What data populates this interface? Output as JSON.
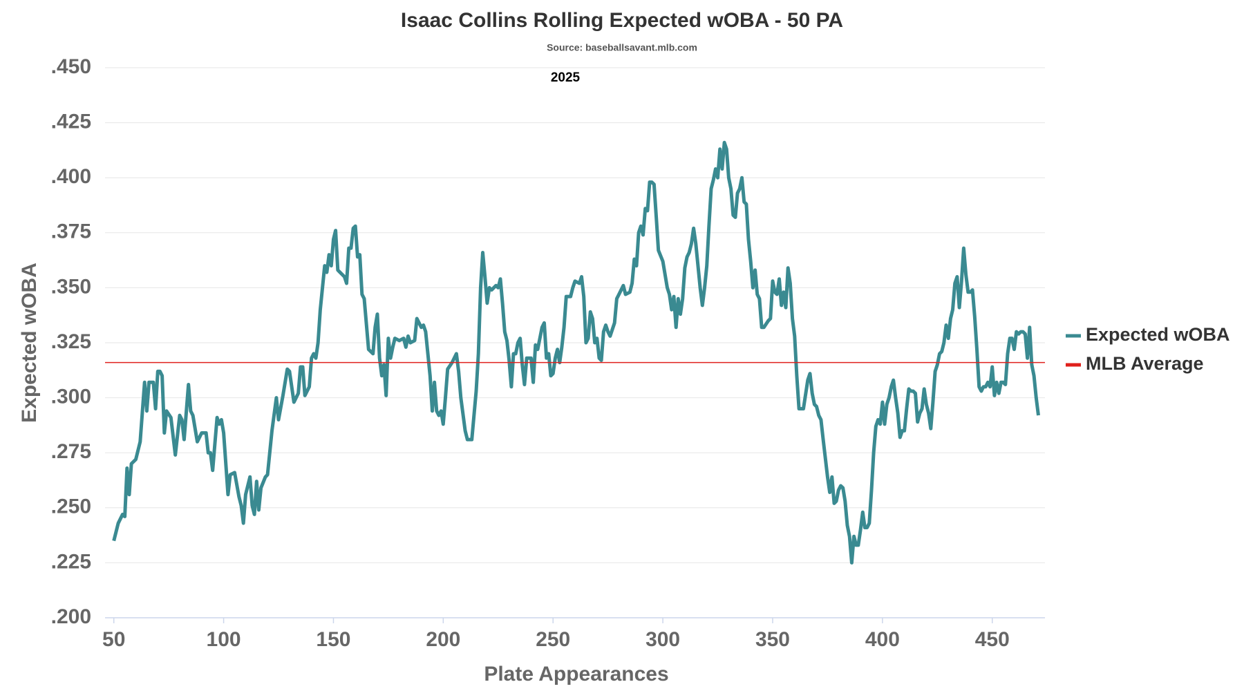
{
  "chart_data": {
    "type": "line",
    "title": "Isaac Collins Rolling Expected wOBA - 50 PA",
    "subtitle": "Source: baseballsavant.mlb.com",
    "annotation": "2025",
    "x_label": "Plate Appearances",
    "y_label": "Expected wOBA",
    "xlim": [
      46,
      474
    ],
    "xticks": [
      50,
      100,
      150,
      200,
      250,
      300,
      350,
      400,
      450
    ],
    "ylim": [
      0.2,
      0.45
    ],
    "yticks": [
      {
        "value": 0.2,
        "label": ".200"
      },
      {
        "value": 0.225,
        "label": ".225"
      },
      {
        "value": 0.25,
        "label": ".250"
      },
      {
        "value": 0.275,
        "label": ".275"
      },
      {
        "value": 0.3,
        "label": ".300"
      },
      {
        "value": 0.325,
        "label": ".325"
      },
      {
        "value": 0.35,
        "label": ".350"
      },
      {
        "value": 0.375,
        "label": ".375"
      },
      {
        "value": 0.4,
        "label": ".400"
      },
      {
        "value": 0.425,
        "label": ".425"
      },
      {
        "value": 0.45,
        "label": ".450"
      }
    ],
    "grid": true,
    "legend": "right",
    "x": [
      50,
      52,
      54,
      55,
      56,
      57,
      58,
      60,
      62,
      64,
      65,
      66,
      68,
      69,
      70,
      71,
      72,
      73,
      74,
      76,
      78,
      80,
      81,
      82,
      84,
      85,
      86,
      88,
      90,
      92,
      93,
      94,
      95,
      97,
      98,
      99,
      100,
      102,
      103,
      105,
      107,
      108,
      109,
      110,
      112,
      113,
      114,
      115,
      116,
      117,
      119,
      120,
      122,
      124,
      125,
      127,
      129,
      130,
      132,
      134,
      135,
      136,
      137,
      139,
      140,
      141,
      142,
      143,
      144,
      146,
      147,
      148,
      149,
      150,
      151,
      152,
      153,
      155,
      156,
      157,
      158,
      159,
      160,
      161,
      162,
      163,
      164,
      166,
      168,
      169,
      170,
      171,
      172,
      173,
      174,
      175,
      176,
      177,
      178,
      180,
      182,
      183,
      184,
      185,
      187,
      188,
      190,
      191,
      192,
      194,
      195,
      196,
      197,
      198,
      199,
      200,
      201,
      202,
      204,
      206,
      207,
      208,
      210,
      211,
      213,
      215,
      216,
      217,
      218,
      219,
      220,
      221,
      222,
      224,
      225,
      226,
      227,
      228,
      229,
      230,
      231,
      232,
      233,
      234,
      235,
      236,
      237,
      238,
      240,
      241,
      242,
      243,
      245,
      246,
      247,
      248,
      249,
      250,
      251,
      252,
      253,
      254,
      255,
      256,
      258,
      259,
      260,
      262,
      263,
      264,
      265,
      266,
      267,
      268,
      269,
      270,
      271,
      272,
      273,
      274,
      275,
      276,
      278,
      279,
      280,
      282,
      283,
      285,
      286,
      287,
      288,
      289,
      290,
      291,
      292,
      293,
      294,
      295,
      296,
      297,
      298,
      300,
      301,
      302,
      303,
      304,
      305,
      306,
      307,
      308,
      309,
      310,
      311,
      312,
      313,
      314,
      315,
      317,
      318,
      319,
      320,
      321,
      322,
      323,
      324,
      325,
      326,
      327,
      328,
      329,
      330,
      331,
      332,
      333,
      334,
      335,
      336,
      337,
      338,
      339,
      340,
      341,
      342,
      343,
      344,
      345,
      346,
      348,
      349,
      350,
      351,
      352,
      353,
      354,
      355,
      356,
      357,
      358,
      359,
      360,
      361,
      362,
      364,
      366,
      367,
      368,
      369,
      370,
      371,
      372,
      373,
      375,
      376,
      377,
      378,
      379,
      380,
      381,
      382,
      383,
      384,
      385,
      386,
      387,
      388,
      389,
      390,
      391,
      392,
      393,
      394,
      395,
      396,
      397,
      398,
      399,
      400,
      401,
      402,
      403,
      404,
      405,
      406,
      407,
      408,
      409,
      410,
      411,
      412,
      413,
      414,
      415,
      416,
      417,
      418,
      419,
      420,
      421,
      422,
      423,
      424,
      425,
      426,
      427,
      428,
      429,
      430,
      431,
      432,
      433,
      434,
      435,
      436,
      437,
      438,
      439,
      440,
      441,
      442,
      443,
      444,
      445,
      446,
      447,
      448,
      449,
      450,
      451,
      452,
      453,
      454,
      455,
      456,
      457,
      458,
      459,
      460,
      461,
      462,
      463,
      464,
      465,
      466,
      467,
      468,
      469,
      470,
      471
    ],
    "series": [
      {
        "name": "Expected wOBA",
        "color": "#3a8a91",
        "values": [
          0.235,
          0.243,
          0.247,
          0.246,
          0.268,
          0.256,
          0.27,
          0.272,
          0.28,
          0.307,
          0.294,
          0.307,
          0.307,
          0.295,
          0.312,
          0.312,
          0.31,
          0.284,
          0.294,
          0.291,
          0.274,
          0.292,
          0.29,
          0.281,
          0.306,
          0.294,
          0.292,
          0.28,
          0.284,
          0.284,
          0.275,
          0.275,
          0.267,
          0.291,
          0.288,
          0.29,
          0.284,
          0.256,
          0.265,
          0.266,
          0.255,
          0.251,
          0.243,
          0.256,
          0.264,
          0.251,
          0.247,
          0.262,
          0.249,
          0.259,
          0.264,
          0.265,
          0.285,
          0.3,
          0.29,
          0.301,
          0.313,
          0.312,
          0.298,
          0.302,
          0.314,
          0.314,
          0.301,
          0.305,
          0.318,
          0.32,
          0.318,
          0.325,
          0.34,
          0.36,
          0.357,
          0.365,
          0.36,
          0.372,
          0.376,
          0.358,
          0.357,
          0.355,
          0.352,
          0.368,
          0.368,
          0.377,
          0.378,
          0.364,
          0.365,
          0.347,
          0.345,
          0.322,
          0.32,
          0.332,
          0.338,
          0.318,
          0.31,
          0.315,
          0.301,
          0.327,
          0.318,
          0.323,
          0.327,
          0.326,
          0.327,
          0.323,
          0.328,
          0.325,
          0.326,
          0.336,
          0.332,
          0.333,
          0.33,
          0.31,
          0.294,
          0.307,
          0.294,
          0.292,
          0.294,
          0.288,
          0.3,
          0.313,
          0.316,
          0.32,
          0.312,
          0.3,
          0.285,
          0.281,
          0.281,
          0.303,
          0.32,
          0.35,
          0.366,
          0.355,
          0.343,
          0.35,
          0.349,
          0.351,
          0.35,
          0.354,
          0.343,
          0.33,
          0.326,
          0.317,
          0.305,
          0.32,
          0.32,
          0.325,
          0.327,
          0.315,
          0.306,
          0.318,
          0.318,
          0.307,
          0.324,
          0.322,
          0.332,
          0.334,
          0.318,
          0.32,
          0.31,
          0.311,
          0.318,
          0.322,
          0.316,
          0.323,
          0.332,
          0.346,
          0.346,
          0.35,
          0.353,
          0.352,
          0.355,
          0.346,
          0.325,
          0.327,
          0.339,
          0.336,
          0.325,
          0.327,
          0.318,
          0.317,
          0.33,
          0.333,
          0.33,
          0.328,
          0.334,
          0.345,
          0.347,
          0.351,
          0.347,
          0.348,
          0.352,
          0.363,
          0.36,
          0.375,
          0.378,
          0.374,
          0.386,
          0.385,
          0.398,
          0.398,
          0.397,
          0.382,
          0.367,
          0.362,
          0.356,
          0.35,
          0.347,
          0.34,
          0.346,
          0.332,
          0.345,
          0.338,
          0.345,
          0.359,
          0.364,
          0.366,
          0.37,
          0.377,
          0.37,
          0.35,
          0.342,
          0.35,
          0.36,
          0.378,
          0.395,
          0.399,
          0.404,
          0.4,
          0.413,
          0.404,
          0.416,
          0.413,
          0.4,
          0.395,
          0.383,
          0.382,
          0.393,
          0.395,
          0.4,
          0.389,
          0.388,
          0.372,
          0.362,
          0.35,
          0.358,
          0.347,
          0.345,
          0.332,
          0.332,
          0.335,
          0.336,
          0.353,
          0.348,
          0.347,
          0.354,
          0.342,
          0.348,
          0.341,
          0.359,
          0.352,
          0.336,
          0.328,
          0.31,
          0.295,
          0.295,
          0.308,
          0.311,
          0.302,
          0.297,
          0.296,
          0.292,
          0.29,
          0.281,
          0.264,
          0.257,
          0.264,
          0.252,
          0.253,
          0.258,
          0.26,
          0.259,
          0.253,
          0.242,
          0.237,
          0.225,
          0.237,
          0.233,
          0.233,
          0.24,
          0.248,
          0.241,
          0.241,
          0.243,
          0.258,
          0.275,
          0.287,
          0.29,
          0.288,
          0.298,
          0.288,
          0.297,
          0.3,
          0.305,
          0.308,
          0.3,
          0.293,
          0.282,
          0.285,
          0.285,
          0.295,
          0.304,
          0.303,
          0.303,
          0.302,
          0.289,
          0.293,
          0.295,
          0.304,
          0.297,
          0.293,
          0.286,
          0.298,
          0.312,
          0.315,
          0.32,
          0.321,
          0.325,
          0.333,
          0.327,
          0.336,
          0.34,
          0.352,
          0.355,
          0.341,
          0.353,
          0.368,
          0.356,
          0.348,
          0.348,
          0.349,
          0.337,
          0.322,
          0.305,
          0.303,
          0.305,
          0.305,
          0.307,
          0.305,
          0.314,
          0.301,
          0.307,
          0.302,
          0.307,
          0.307,
          0.306,
          0.32,
          0.327,
          0.327,
          0.322,
          0.33,
          0.329,
          0.33,
          0.33,
          0.329,
          0.318,
          0.332,
          0.315,
          0.31,
          0.3,
          0.292
        ]
      }
    ],
    "average": {
      "name": "MLB Average",
      "value": 0.316,
      "color": "#e0201c"
    }
  }
}
